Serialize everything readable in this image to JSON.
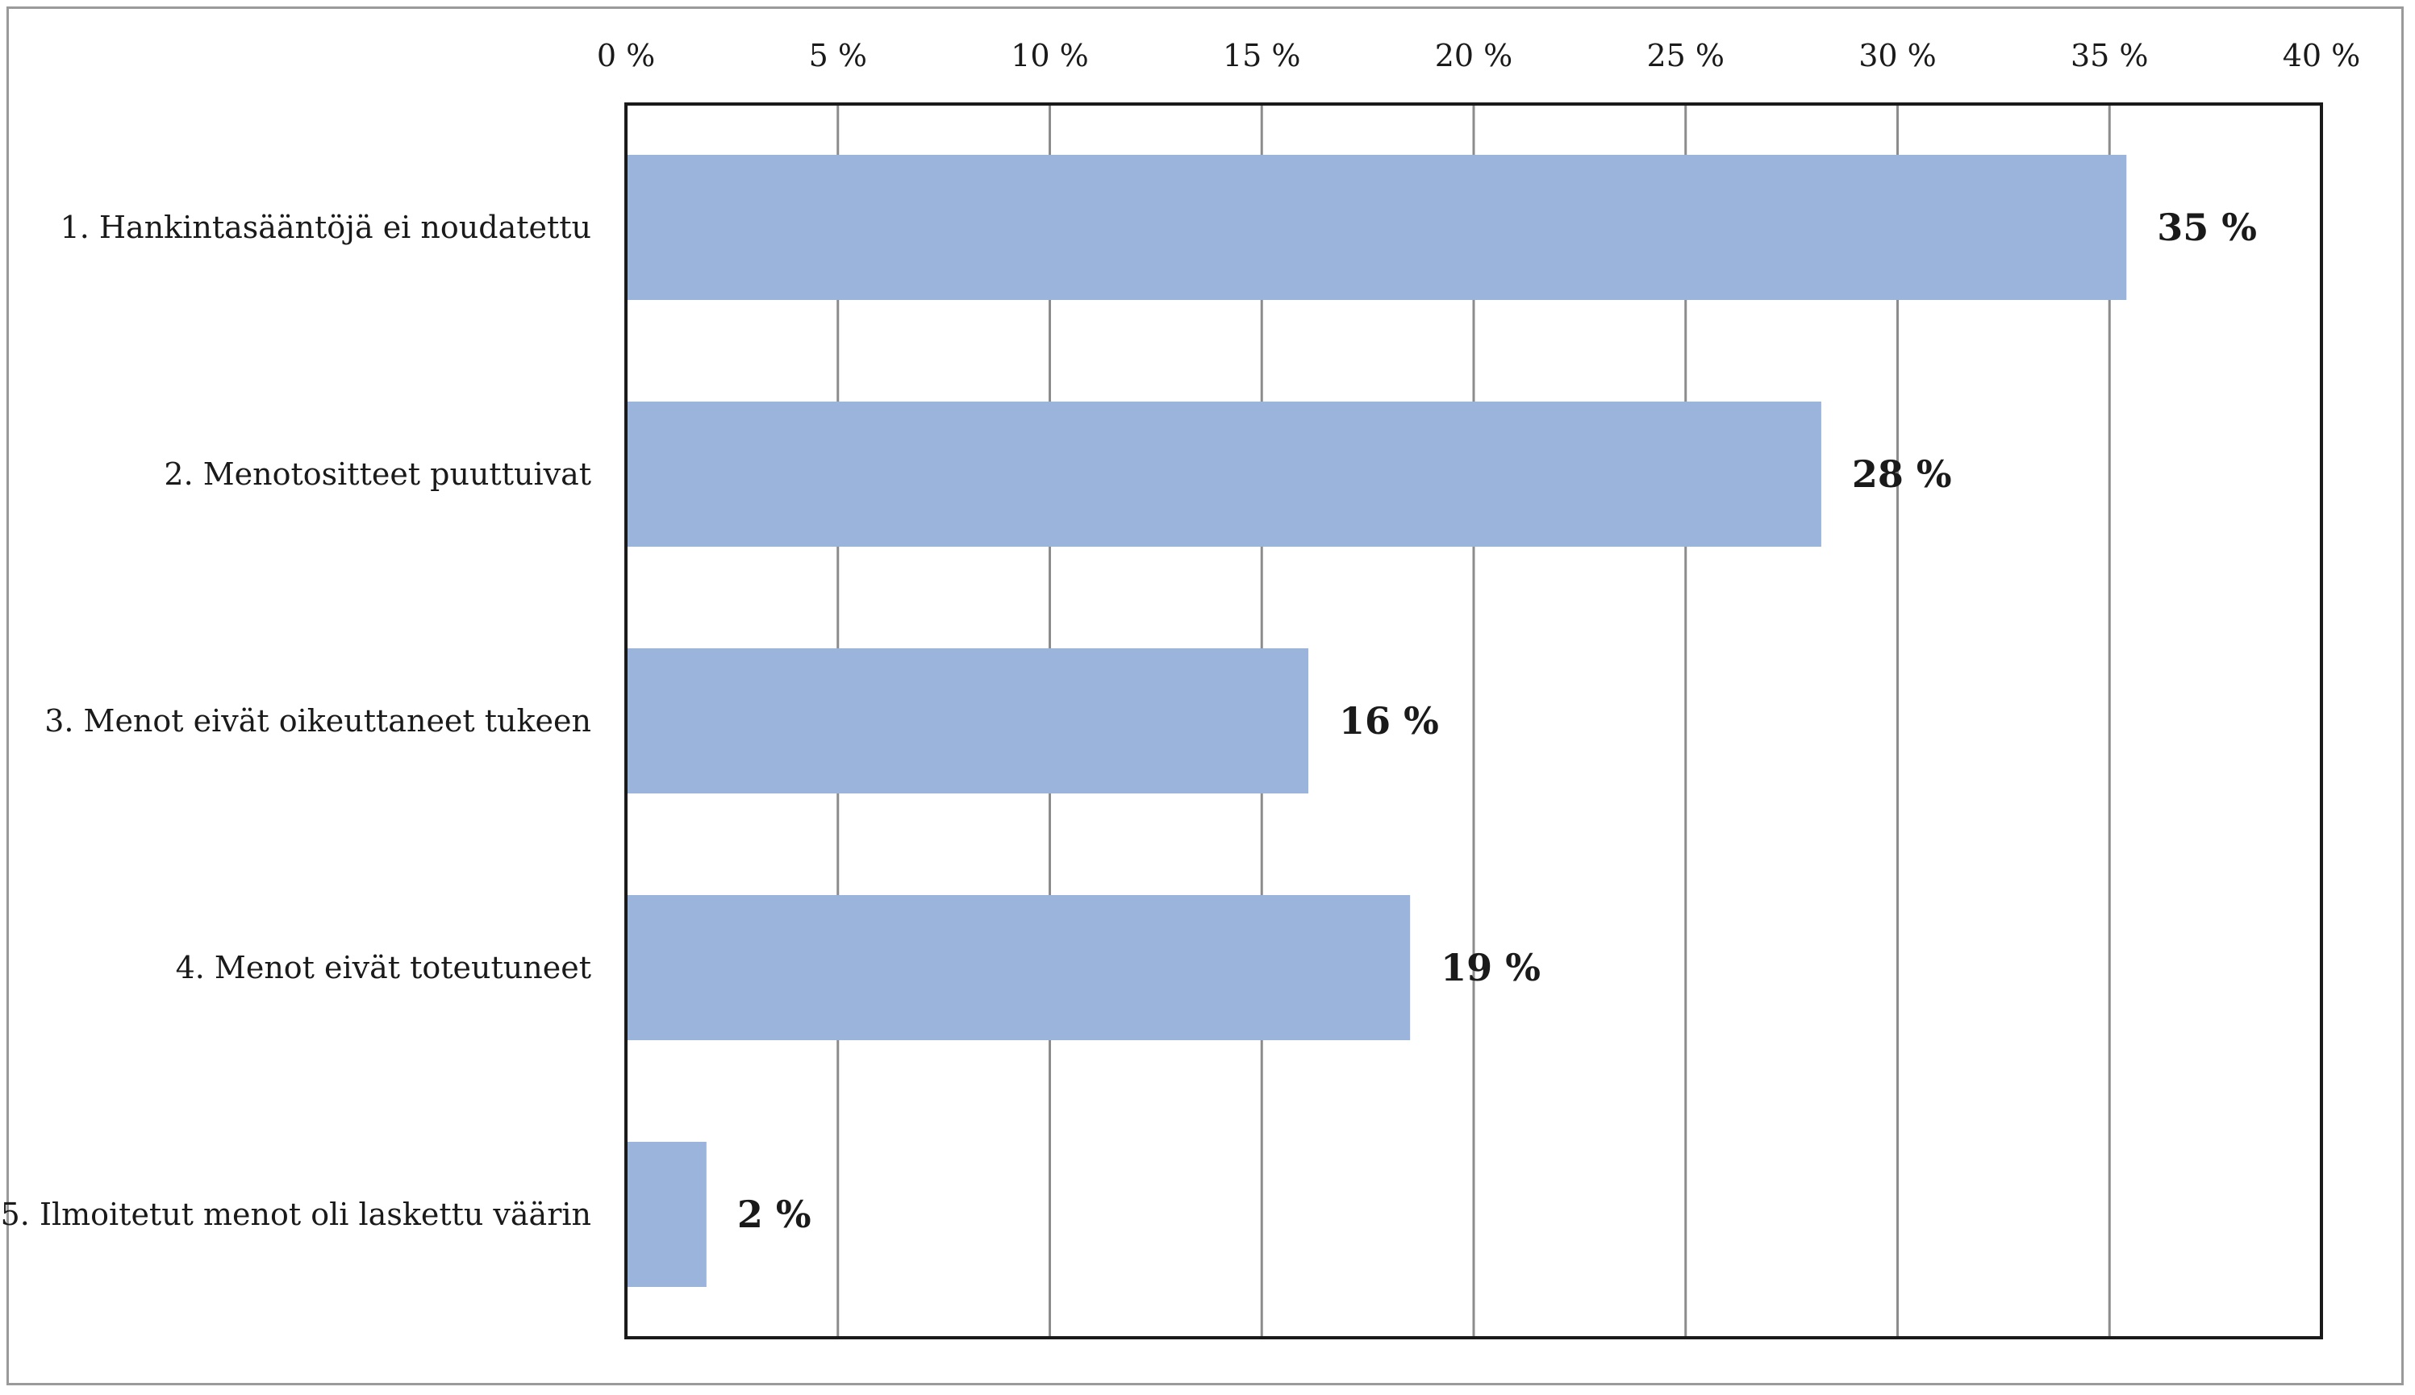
{
  "chart_data": {
    "type": "bar",
    "orientation": "horizontal",
    "categories": [
      "1. Hankintasääntöjä ei noudatettu",
      "2. Menotositteet puuttuivat",
      "3. Menot eivät oikeuttaneet tukeen",
      "4. Menot eivät toteutuneet",
      "5. Ilmoitetut menot oli laskettu väärin"
    ],
    "values": [
      35.4,
      28.2,
      16.1,
      18.5,
      1.9
    ],
    "data_labels": [
      "35 %",
      "28 %",
      "16 %",
      "19 %",
      "2 %"
    ],
    "xlim": [
      0,
      40
    ],
    "x_ticks": [
      0,
      5,
      10,
      15,
      20,
      25,
      30,
      35,
      40
    ],
    "x_tick_labels": [
      "0 %",
      "5 %",
      "10 %",
      "15 %",
      "20 %",
      "25 %",
      "30 %",
      "35 %",
      "40 %"
    ],
    "x_axis_position": "top",
    "grid": true,
    "legend": "none",
    "bar_color": "#9bb4db",
    "grid_color": "#8c8c8c",
    "title": "",
    "xlabel": "",
    "ylabel": ""
  }
}
